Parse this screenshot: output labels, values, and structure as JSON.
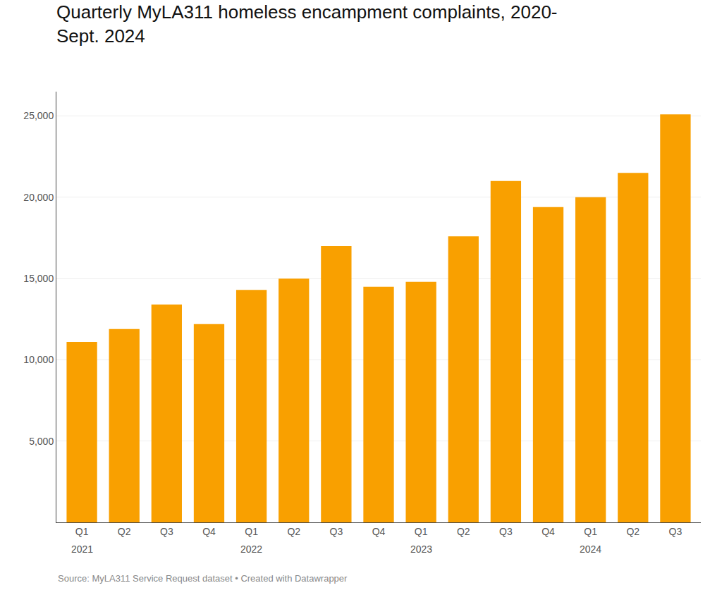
{
  "chart_data": {
    "type": "bar",
    "title": "Quarterly MyLA311 homeless encampment complaints, 2020-\nSept. 2024",
    "categories": [
      "Q1",
      "Q2",
      "Q3",
      "Q4",
      "Q1",
      "Q2",
      "Q3",
      "Q4",
      "Q1",
      "Q2",
      "Q3",
      "Q4",
      "Q1",
      "Q2",
      "Q3"
    ],
    "values": [
      11100,
      11900,
      13400,
      12200,
      14300,
      15000,
      17000,
      14500,
      14800,
      17600,
      21000,
      19400,
      20000,
      21500,
      25100
    ],
    "color": "#F9A000",
    "ylim": [
      0,
      26500
    ],
    "yticks": [
      {
        "value": 5000,
        "label": "5,000"
      },
      {
        "value": 10000,
        "label": "10,000"
      },
      {
        "value": 15000,
        "label": "15,000"
      },
      {
        "value": 20000,
        "label": "20,000"
      },
      {
        "value": 25000,
        "label": "25,000"
      }
    ],
    "grid": true,
    "annotations": [
      {
        "text": "2021",
        "x": 0
      },
      {
        "text": "2022",
        "x": 4
      },
      {
        "text": "2023",
        "x": 8
      },
      {
        "text": "2024",
        "x": 12
      }
    ],
    "source": "Source: MyLA311 Service Request dataset • Created with Datawrapper"
  }
}
